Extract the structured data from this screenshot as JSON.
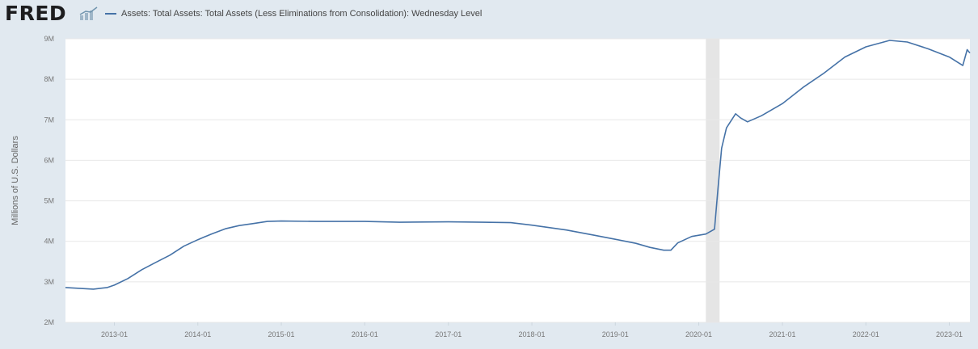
{
  "header": {
    "logo_text": "FRED",
    "logo_icon": "fred-graph-icon",
    "legend_label": "Assets: Total Assets: Total Assets (Less Eliminations from Consolidation): Wednesday Level",
    "legend_color": "#4572a7"
  },
  "colors": {
    "background": "#e1e9f0",
    "plot_background": "#ffffff",
    "line": "#4572a7",
    "recession_shading": "#e5e5e5",
    "grid": "#e8e8e8"
  },
  "chart_data": {
    "type": "line",
    "title": "",
    "xlabel": "",
    "ylabel": "Millions of U.S. Dollars",
    "x_range": [
      "2012-06-01",
      "2023-04-01"
    ],
    "ylim": [
      2000000,
      9000000
    ],
    "y_ticks": [
      2000000,
      3000000,
      4000000,
      5000000,
      6000000,
      7000000,
      8000000,
      9000000
    ],
    "y_tick_labels": [
      "2M",
      "3M",
      "4M",
      "5M",
      "6M",
      "7M",
      "8M",
      "9M"
    ],
    "x_ticks": [
      "2013-01-01",
      "2014-01-01",
      "2015-01-01",
      "2016-01-01",
      "2017-01-01",
      "2018-01-01",
      "2019-01-01",
      "2020-01-01",
      "2021-01-01",
      "2022-01-01",
      "2023-01-01"
    ],
    "x_tick_labels": [
      "2013-01",
      "2014-01",
      "2015-01",
      "2016-01",
      "2017-01",
      "2018-01",
      "2019-01",
      "2020-01",
      "2021-01",
      "2022-01",
      "2023-01"
    ],
    "grid": "horizontal",
    "legend_position": "top-left",
    "recessions": [
      [
        "2020-02-01",
        "2020-04-01"
      ]
    ],
    "series": [
      {
        "name": "Assets: Total Assets: Total Assets (Less Eliminations from Consolidation): Wednesday Level",
        "points": [
          [
            "2012-06-01",
            2860000
          ],
          [
            "2012-08-01",
            2840000
          ],
          [
            "2012-10-01",
            2820000
          ],
          [
            "2012-12-01",
            2860000
          ],
          [
            "2013-01-01",
            2920000
          ],
          [
            "2013-03-01",
            3080000
          ],
          [
            "2013-05-01",
            3300000
          ],
          [
            "2013-07-01",
            3480000
          ],
          [
            "2013-09-01",
            3660000
          ],
          [
            "2013-11-01",
            3880000
          ],
          [
            "2014-01-01",
            4040000
          ],
          [
            "2014-03-01",
            4180000
          ],
          [
            "2014-05-01",
            4310000
          ],
          [
            "2014-07-01",
            4390000
          ],
          [
            "2014-09-01",
            4440000
          ],
          [
            "2014-11-01",
            4490000
          ],
          [
            "2015-01-01",
            4500000
          ],
          [
            "2015-06-01",
            4490000
          ],
          [
            "2016-01-01",
            4490000
          ],
          [
            "2016-06-01",
            4470000
          ],
          [
            "2017-01-01",
            4480000
          ],
          [
            "2017-06-01",
            4470000
          ],
          [
            "2017-10-01",
            4460000
          ],
          [
            "2018-01-01",
            4400000
          ],
          [
            "2018-06-01",
            4280000
          ],
          [
            "2018-10-01",
            4150000
          ],
          [
            "2019-01-01",
            4050000
          ],
          [
            "2019-04-01",
            3950000
          ],
          [
            "2019-06-01",
            3850000
          ],
          [
            "2019-08-01",
            3780000
          ],
          [
            "2019-09-01",
            3780000
          ],
          [
            "2019-10-01",
            3960000
          ],
          [
            "2019-12-01",
            4120000
          ],
          [
            "2020-02-01",
            4180000
          ],
          [
            "2020-03-10",
            4300000
          ],
          [
            "2020-03-25",
            5300000
          ],
          [
            "2020-04-10",
            6300000
          ],
          [
            "2020-05-01",
            6800000
          ],
          [
            "2020-06-10",
            7150000
          ],
          [
            "2020-07-01",
            7050000
          ],
          [
            "2020-08-01",
            6950000
          ],
          [
            "2020-10-01",
            7100000
          ],
          [
            "2021-01-01",
            7400000
          ],
          [
            "2021-04-01",
            7800000
          ],
          [
            "2021-07-01",
            8150000
          ],
          [
            "2021-10-01",
            8550000
          ],
          [
            "2022-01-01",
            8800000
          ],
          [
            "2022-04-15",
            8960000
          ],
          [
            "2022-07-01",
            8920000
          ],
          [
            "2022-10-01",
            8750000
          ],
          [
            "2023-01-01",
            8550000
          ],
          [
            "2023-03-01",
            8340000
          ],
          [
            "2023-03-20",
            8730000
          ],
          [
            "2023-04-01",
            8650000
          ]
        ]
      }
    ]
  }
}
